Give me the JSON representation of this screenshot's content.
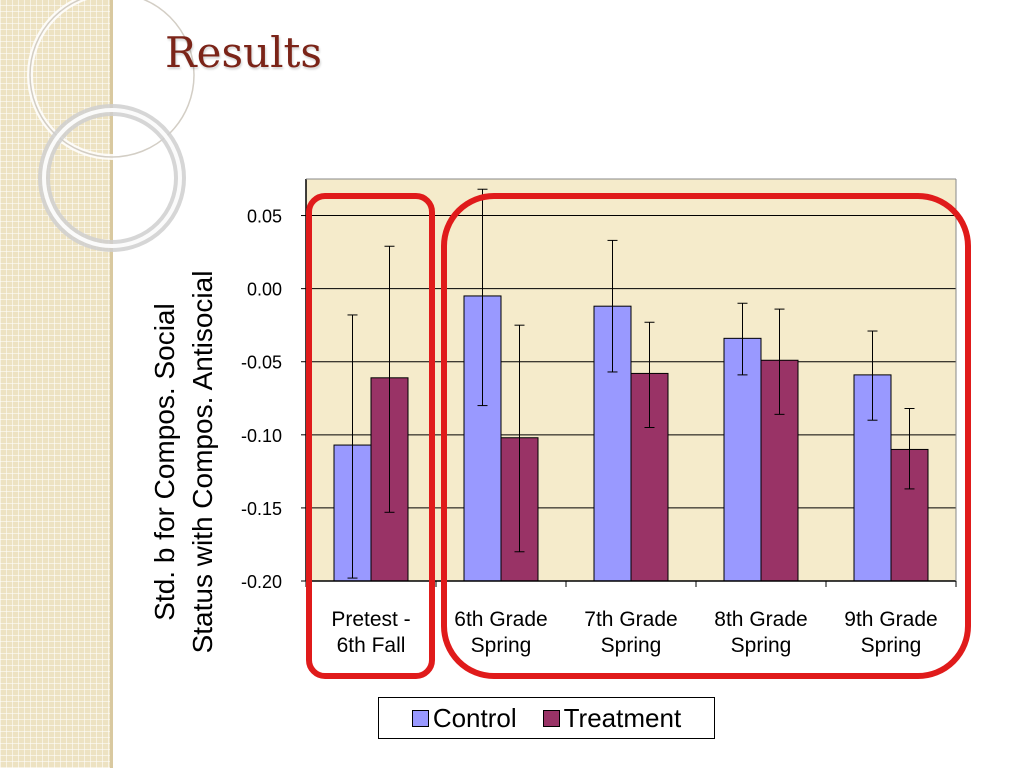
{
  "slide": {
    "title": "Results"
  },
  "colors": {
    "plot_bg": "#f5ebcb",
    "control": "#9999ff",
    "treatment": "#993366",
    "highlight": "#e01b1b",
    "title": "#7b2418"
  },
  "chart_data": {
    "type": "bar",
    "title": "",
    "xlabel": "",
    "ylabel_lines": [
      "Std. b for Compos. Social",
      "Status with Compos. Antisocial"
    ],
    "categories": [
      [
        "Pretest -",
        "6th Fall"
      ],
      [
        "6th Grade",
        "Spring"
      ],
      [
        "7th Grade",
        "Spring"
      ],
      [
        "8th Grade",
        "Spring"
      ],
      [
        "9th Grade",
        "Spring"
      ]
    ],
    "ylim": [
      -0.2,
      0.075
    ],
    "yticks": [
      0.05,
      0.0,
      -0.05,
      -0.1,
      -0.15,
      -0.2
    ],
    "ytick_labels": [
      "0.05",
      "0.00",
      "-0.05",
      "-0.10",
      "-0.15",
      "-0.20"
    ],
    "grid": true,
    "legend_position": "bottom",
    "series": [
      {
        "name": "Control",
        "color": "#9999ff",
        "values": [
          -0.107,
          -0.005,
          -0.012,
          -0.034,
          -0.059
        ],
        "error_low": [
          -0.198,
          -0.08,
          -0.057,
          -0.059,
          -0.09
        ],
        "error_high": [
          -0.018,
          0.068,
          0.033,
          -0.01,
          -0.029
        ]
      },
      {
        "name": "Treatment",
        "color": "#993366",
        "values": [
          -0.061,
          -0.102,
          -0.058,
          -0.049,
          -0.11
        ],
        "error_low": [
          -0.153,
          -0.18,
          -0.095,
          -0.086,
          -0.137
        ],
        "error_high": [
          0.029,
          -0.025,
          -0.023,
          -0.014,
          -0.082
        ]
      }
    ]
  },
  "legend": {
    "control_label": "Control",
    "treatment_label": "Treatment"
  }
}
